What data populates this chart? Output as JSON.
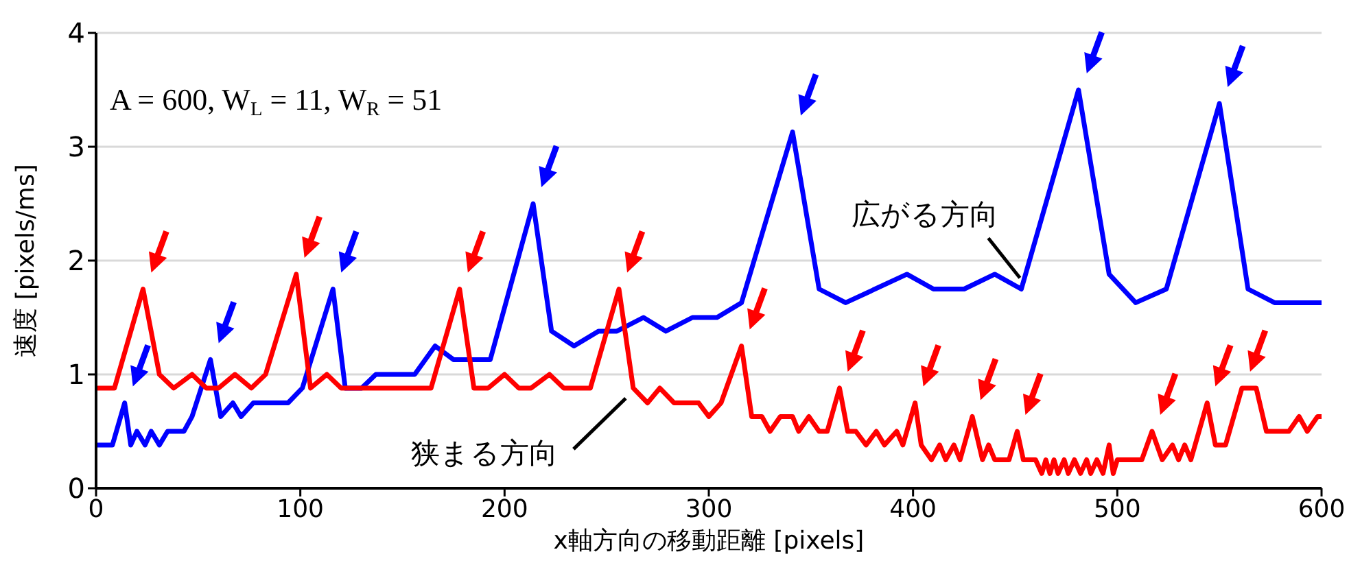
{
  "chart_data": {
    "type": "line",
    "xlabel": "x軸方向の移動距離 [pixels]",
    "ylabel": "速度 [pixels/ms]",
    "series": [
      {
        "color": "#0000ff",
        "x": [
          0,
          8,
          14,
          17,
          20,
          24,
          27,
          31,
          35,
          43,
          47,
          56,
          61,
          67,
          71,
          77,
          94,
          101,
          116,
          122,
          130,
          137,
          156,
          166,
          175,
          193,
          214,
          223,
          234,
          246,
          255,
          268,
          279,
          292,
          304,
          316,
          341,
          354,
          367,
          397,
          410,
          425,
          440,
          453,
          481,
          496,
          509,
          524,
          550,
          564,
          577,
          600
        ],
        "values": [
          0.38,
          0.38,
          0.75,
          0.38,
          0.5,
          0.38,
          0.5,
          0.38,
          0.5,
          0.5,
          0.63,
          1.13,
          0.63,
          0.75,
          0.63,
          0.75,
          0.75,
          0.88,
          1.75,
          0.88,
          0.88,
          1.0,
          1.0,
          1.25,
          1.13,
          1.13,
          2.5,
          1.38,
          1.25,
          1.38,
          1.38,
          1.5,
          1.38,
          1.5,
          1.5,
          1.63,
          3.13,
          1.75,
          1.63,
          1.88,
          1.75,
          1.75,
          1.88,
          1.75,
          3.5,
          1.88,
          1.63,
          1.75,
          3.38,
          1.75,
          1.63,
          1.63
        ]
      },
      {
        "color": "#ff0000",
        "x": [
          0,
          9,
          23,
          31,
          38,
          47,
          54,
          60,
          68,
          76,
          83,
          98,
          105,
          113,
          120,
          164,
          178,
          185,
          192,
          200,
          207,
          213,
          222,
          229,
          242,
          256,
          263,
          270,
          276,
          283,
          295,
          300,
          306,
          316,
          321,
          326,
          330,
          335,
          341,
          344,
          349,
          354,
          358,
          364,
          368,
          372,
          377,
          382,
          386,
          392,
          395,
          401,
          404,
          409,
          413,
          416,
          420,
          423,
          429,
          434,
          437,
          440,
          447,
          451,
          454,
          460,
          463,
          465,
          467,
          469,
          471,
          474,
          476,
          479,
          482,
          485,
          487,
          490,
          493,
          496,
          498,
          500,
          512,
          517,
          522,
          527,
          530,
          533,
          536,
          544,
          548,
          553,
          561,
          568,
          573,
          584,
          589,
          593,
          598,
          600
        ],
        "values": [
          0.88,
          0.88,
          1.75,
          1.0,
          0.88,
          1.0,
          0.88,
          0.88,
          1.0,
          0.88,
          1.0,
          1.88,
          0.88,
          1.0,
          0.88,
          0.88,
          1.75,
          0.88,
          0.88,
          1.0,
          0.88,
          0.88,
          1.0,
          0.88,
          0.88,
          1.75,
          0.88,
          0.75,
          0.88,
          0.75,
          0.75,
          0.63,
          0.75,
          1.25,
          0.63,
          0.63,
          0.5,
          0.63,
          0.63,
          0.5,
          0.63,
          0.5,
          0.5,
          0.88,
          0.5,
          0.5,
          0.38,
          0.5,
          0.38,
          0.5,
          0.38,
          0.75,
          0.38,
          0.25,
          0.38,
          0.25,
          0.38,
          0.25,
          0.63,
          0.25,
          0.38,
          0.25,
          0.25,
          0.5,
          0.25,
          0.25,
          0.13,
          0.25,
          0.13,
          0.25,
          0.13,
          0.25,
          0.13,
          0.25,
          0.13,
          0.25,
          0.13,
          0.25,
          0.13,
          0.38,
          0.13,
          0.25,
          0.25,
          0.5,
          0.25,
          0.38,
          0.25,
          0.38,
          0.25,
          0.75,
          0.38,
          0.38,
          0.88,
          0.88,
          0.5,
          0.5,
          0.63,
          0.5,
          0.63,
          0.63
        ]
      }
    ],
    "xlim": [
      0,
      600
    ],
    "xticks": [
      0,
      100,
      200,
      300,
      400,
      500,
      600
    ],
    "ylim": [
      0,
      4
    ],
    "yticks": [
      0,
      1,
      2,
      3,
      4
    ],
    "grid": "y",
    "marker": "none",
    "line_style": "solid",
    "annotations": [
      "A = 600, W$_{L}$ = 11, W$_{R}$ = 51",
      {
        "text": "広がる方向",
        "x": 455,
        "y": 1.8
      },
      {
        "text": "狭まる方向",
        "x": 262,
        "y": 0.85
      }
    ]
  }
}
